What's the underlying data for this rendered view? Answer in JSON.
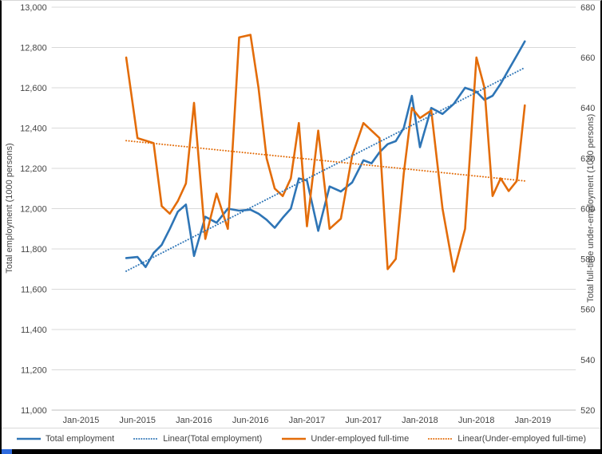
{
  "frame": {
    "border_color": "#000000",
    "bottom_bar_color": "#000000",
    "accent_color": "#2F6BDE"
  },
  "chart_data": {
    "type": "line",
    "grid": "horizontal",
    "legend_position": "bottom",
    "x_axis": {
      "tick_labels": [
        "Jan-2015",
        "Jun-2015",
        "Jan-2016",
        "Jun-2016",
        "Jan-2017",
        "Jun-2017",
        "Jan-2018",
        "Jun-2018",
        "Jan-2019"
      ],
      "tick_month_index": [
        0,
        5,
        12,
        17,
        24,
        29,
        36,
        41,
        48
      ]
    },
    "left_axis": {
      "title": "Total employment (1000 persons)",
      "min": 11000,
      "max": 13000,
      "step": 200,
      "tick_labels": [
        "13,000",
        "12,800",
        "12,600",
        "12,400",
        "12,200",
        "12,000",
        "11,800",
        "11,600",
        "11,400",
        "11,200",
        "11,000"
      ]
    },
    "right_axis": {
      "title": "Total full-time under-employment (1000 persons)",
      "min": 520,
      "max": 680,
      "step": 20,
      "tick_labels": [
        "680",
        "660",
        "640",
        "620",
        "600",
        "580",
        "560",
        "540",
        "520"
      ]
    },
    "x_months": [
      "May-2015",
      "Jun-2015",
      "Jul-2015",
      "Aug-2015",
      "Sep-2015",
      "Oct-2015",
      "Nov-2015",
      "Dec-2015",
      "Jan-2016",
      "Feb-2016",
      "Mar-2016",
      "Apr-2016",
      "May-2016",
      "Jun-2016",
      "Jul-2016",
      "Aug-2016",
      "Sep-2016",
      "Oct-2016",
      "Nov-2016",
      "Dec-2016",
      "Jan-2017",
      "Feb-2017",
      "Mar-2017",
      "Apr-2017",
      "May-2017",
      "Jun-2017",
      "Jul-2017",
      "Aug-2017",
      "Sep-2017",
      "Oct-2017",
      "Nov-2017",
      "Dec-2017",
      "Jan-2018",
      "Feb-2018",
      "Mar-2018",
      "Apr-2018",
      "May-2018",
      "Jun-2018",
      "Jul-2018",
      "Aug-2018",
      "Sep-2018",
      "Oct-2018",
      "Nov-2018",
      "Dec-2018"
    ],
    "series": [
      {
        "id": "total-employment-line",
        "name": "Total employment",
        "axis": "left",
        "color": "#2E75B6",
        "style": "solid",
        "start_month_index": 4,
        "values": [
          11755,
          11760,
          11710,
          11780,
          11820,
          11900,
          11985,
          12020,
          11765,
          11960,
          11930,
          12000,
          11990,
          11995,
          11975,
          11945,
          11905,
          11955,
          12000,
          12150,
          12140,
          11890,
          12110,
          12085,
          12130,
          12240,
          12225,
          12280,
          12320,
          12335,
          12400,
          12560,
          12305,
          12500,
          12470,
          12520,
          12600,
          12580,
          12540,
          12560,
          12620,
          12690,
          12760,
          12830
        ]
      },
      {
        "id": "underemployed-full-time-line",
        "name": "Under-employed full-time",
        "axis": "right",
        "color": "#E36C09",
        "style": "solid",
        "start_month_index": 4,
        "values": [
          660,
          628,
          627,
          626,
          601,
          598,
          603,
          610,
          642,
          588,
          606,
          592,
          668,
          669,
          648,
          620,
          608,
          605,
          612,
          634,
          593,
          631,
          592,
          596,
          621,
          634,
          631,
          628,
          576,
          580,
          614,
          640,
          636,
          639,
          600,
          575,
          592,
          660,
          648,
          605,
          612,
          607,
          611,
          641
        ]
      },
      {
        "id": "total-employment-trendline",
        "name": "Linear(Total employment)",
        "axis": "left",
        "color": "#2E75B6",
        "style": "dotted",
        "trend": {
          "start_month_index": 4,
          "end_month_index": 47,
          "start_value": 11690,
          "end_value": 12700
        }
      },
      {
        "id": "underemployed-full-time-trendline",
        "name": "Linear(Under-employed full-time)",
        "axis": "right",
        "color": "#E36C09",
        "style": "dotted",
        "trend": {
          "start_month_index": 4,
          "end_month_index": 47,
          "start_value": 627,
          "end_value": 611
        }
      }
    ],
    "legend": {
      "items": [
        {
          "label": "Total employment",
          "color": "#2E75B6",
          "style": "solid"
        },
        {
          "label": "Linear(Total employment)",
          "color": "#2E75B6",
          "style": "dotted"
        },
        {
          "label": "Under-employed full-time",
          "color": "#E36C09",
          "style": "solid"
        },
        {
          "label": "Linear(Under-employed full-time)",
          "color": "#E36C09",
          "style": "dotted"
        }
      ]
    }
  }
}
